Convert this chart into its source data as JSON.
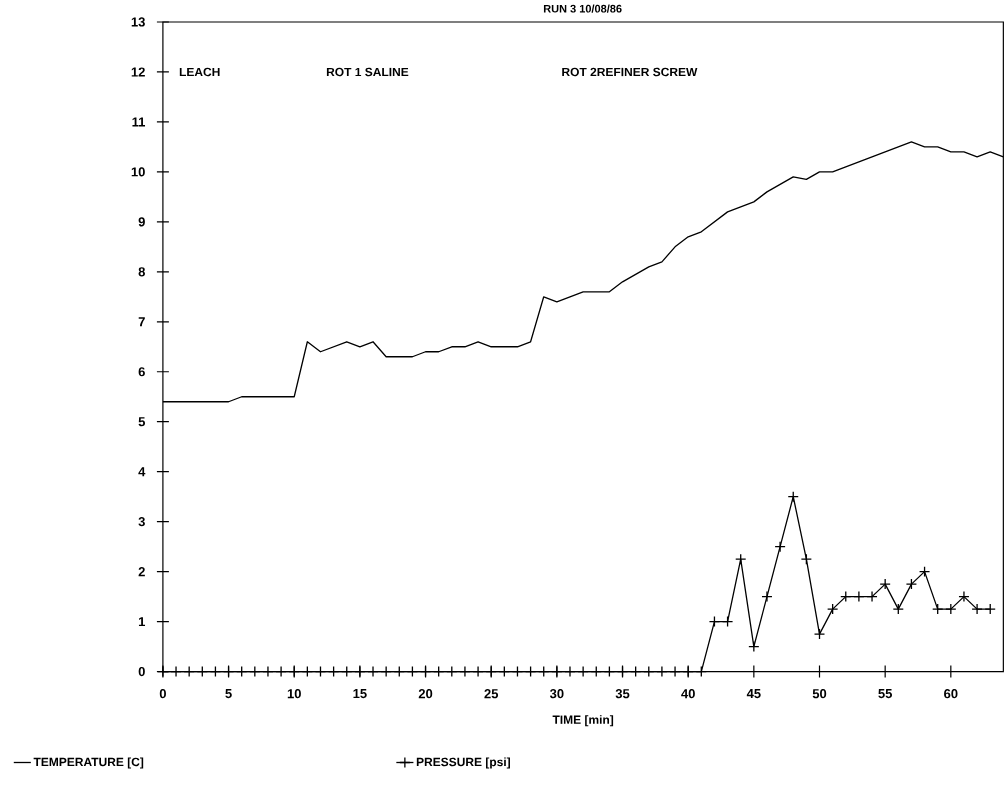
{
  "chart_data": {
    "type": "line",
    "title": "RUN 3 10/08/86",
    "xlabel": "TIME [min]",
    "xlim": [
      0,
      64
    ],
    "ylim": [
      0,
      13
    ],
    "xticks": [
      0,
      5,
      10,
      15,
      20,
      25,
      30,
      35,
      40,
      45,
      50,
      55,
      60
    ],
    "yticks": [
      0,
      1,
      2,
      3,
      4,
      5,
      6,
      7,
      8,
      9,
      10,
      11,
      12,
      13
    ],
    "legend": "bottom",
    "grid": false,
    "annotations": [
      "LEACH",
      "ROT 1  SALINE",
      "ROT 2REFINER  SCREW"
    ],
    "series": [
      {
        "name": "TEMPERATURE [C]",
        "color": "#000000",
        "marker": "none",
        "line_style": "solid",
        "x": [
          0,
          5,
          6,
          10,
          11,
          12,
          14,
          15,
          16,
          17,
          19,
          20,
          21,
          22,
          23,
          24,
          25,
          27,
          28,
          29,
          30,
          32,
          34,
          35,
          37,
          38,
          39,
          40,
          41,
          43,
          45,
          46,
          48,
          49,
          50,
          51,
          53,
          55,
          57,
          58,
          59,
          60,
          61,
          62,
          63,
          64
        ],
        "values": [
          5.4,
          5.4,
          5.5,
          5.5,
          6.6,
          6.4,
          6.6,
          6.5,
          6.6,
          6.3,
          6.3,
          6.4,
          6.4,
          6.5,
          6.5,
          6.6,
          6.5,
          6.5,
          6.6,
          7.5,
          7.4,
          7.6,
          7.6,
          7.8,
          8.1,
          8.2,
          8.5,
          8.7,
          8.8,
          9.2,
          9.4,
          9.6,
          9.9,
          9.85,
          10.0,
          10.0,
          10.2,
          10.4,
          10.6,
          10.5,
          10.5,
          10.4,
          10.4,
          10.3,
          10.4,
          10.3
        ]
      },
      {
        "name": "PRESSURE [psi]",
        "color": "#000000",
        "marker": "cross",
        "line_style": "solid",
        "x": [
          0,
          1,
          2,
          3,
          4,
          5,
          6,
          7,
          8,
          9,
          10,
          11,
          12,
          13,
          14,
          15,
          16,
          17,
          18,
          19,
          20,
          21,
          22,
          23,
          24,
          25,
          26,
          27,
          28,
          29,
          30,
          31,
          32,
          33,
          34,
          35,
          36,
          37,
          38,
          39,
          40,
          41,
          42,
          43,
          44,
          45,
          46,
          47,
          48,
          49,
          50,
          51,
          52,
          53,
          54,
          55,
          56,
          57,
          58,
          59,
          60,
          61,
          62,
          63
        ],
        "values": [
          0,
          0,
          0,
          0,
          0,
          0,
          0,
          0,
          0,
          0,
          0,
          0,
          0,
          0,
          0,
          0,
          0,
          0,
          0,
          0,
          0,
          0,
          0,
          0,
          0,
          0,
          0,
          0,
          0,
          0,
          0,
          0,
          0,
          0,
          0,
          0,
          0,
          0,
          0,
          0,
          0,
          0,
          1,
          1,
          2.25,
          0.5,
          1.5,
          2.5,
          3.5,
          2.25,
          0.75,
          1.25,
          1.5,
          1.5,
          1.5,
          1.75,
          1.25,
          1.75,
          2,
          1.25,
          1.25,
          1.5,
          1.25,
          1.25
        ]
      }
    ]
  }
}
